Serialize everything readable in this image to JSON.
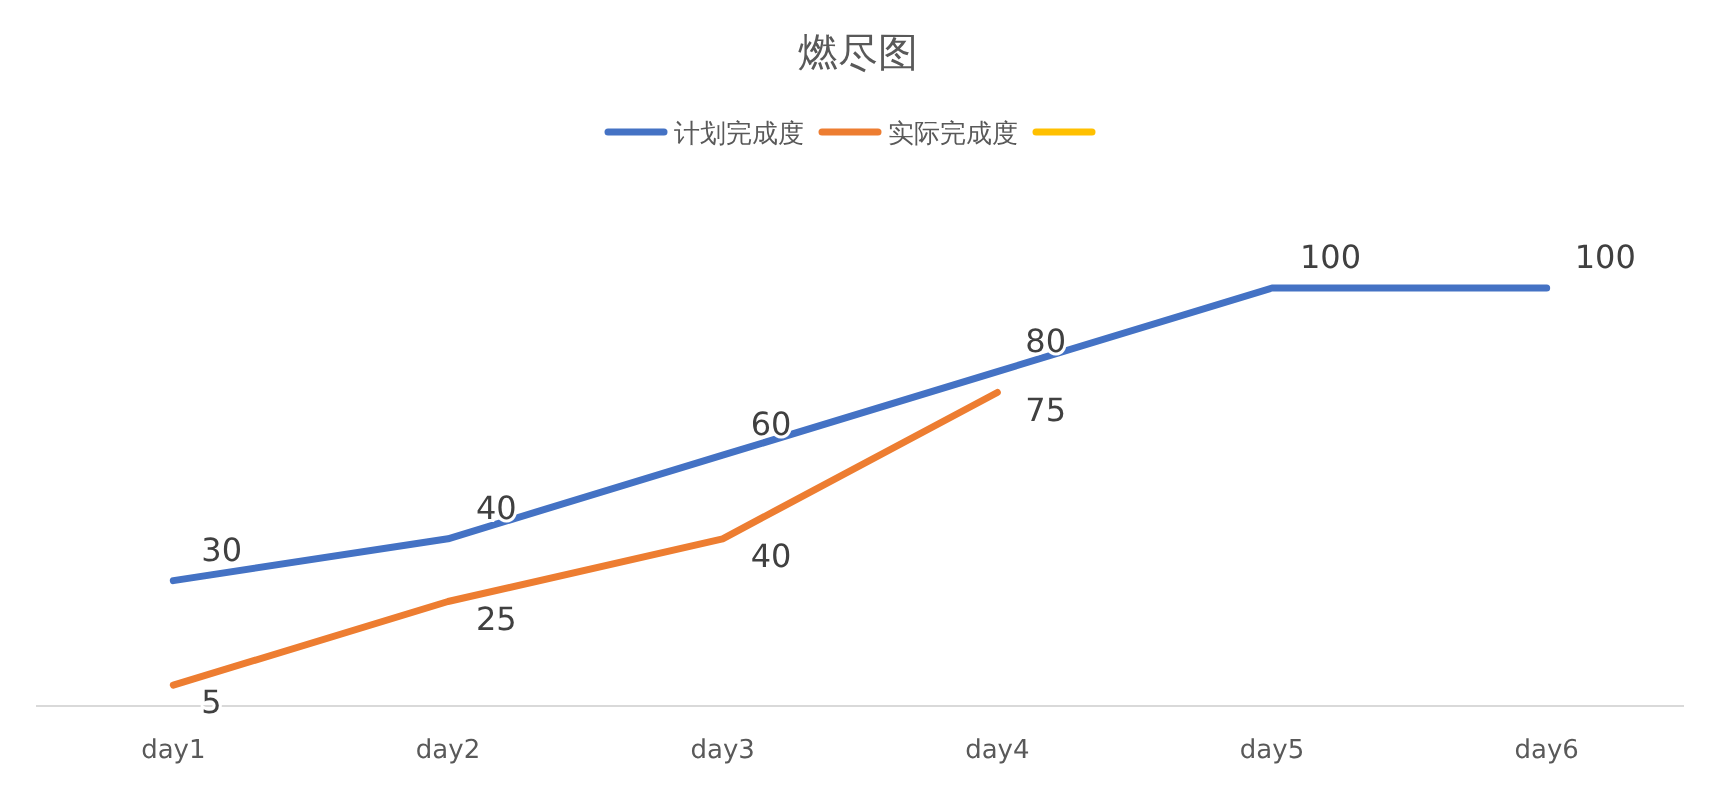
{
  "chart_data": {
    "type": "line",
    "title": "燃尽图",
    "categories": [
      "day1",
      "day2",
      "day3",
      "day4",
      "day5",
      "day6"
    ],
    "series": [
      {
        "name": "计划完成度",
        "color": "#4472c4",
        "values": [
          30,
          40,
          60,
          80,
          100,
          100
        ]
      },
      {
        "name": "实际完成度",
        "color": "#ed7d31",
        "values": [
          5,
          25,
          40,
          75,
          null,
          null
        ]
      },
      {
        "color": "#ffc000",
        "values": [
          null,
          null,
          null,
          null,
          null,
          null
        ]
      }
    ],
    "data_labels": true,
    "legend": "top",
    "marker": "none",
    "line_style": "solid"
  }
}
